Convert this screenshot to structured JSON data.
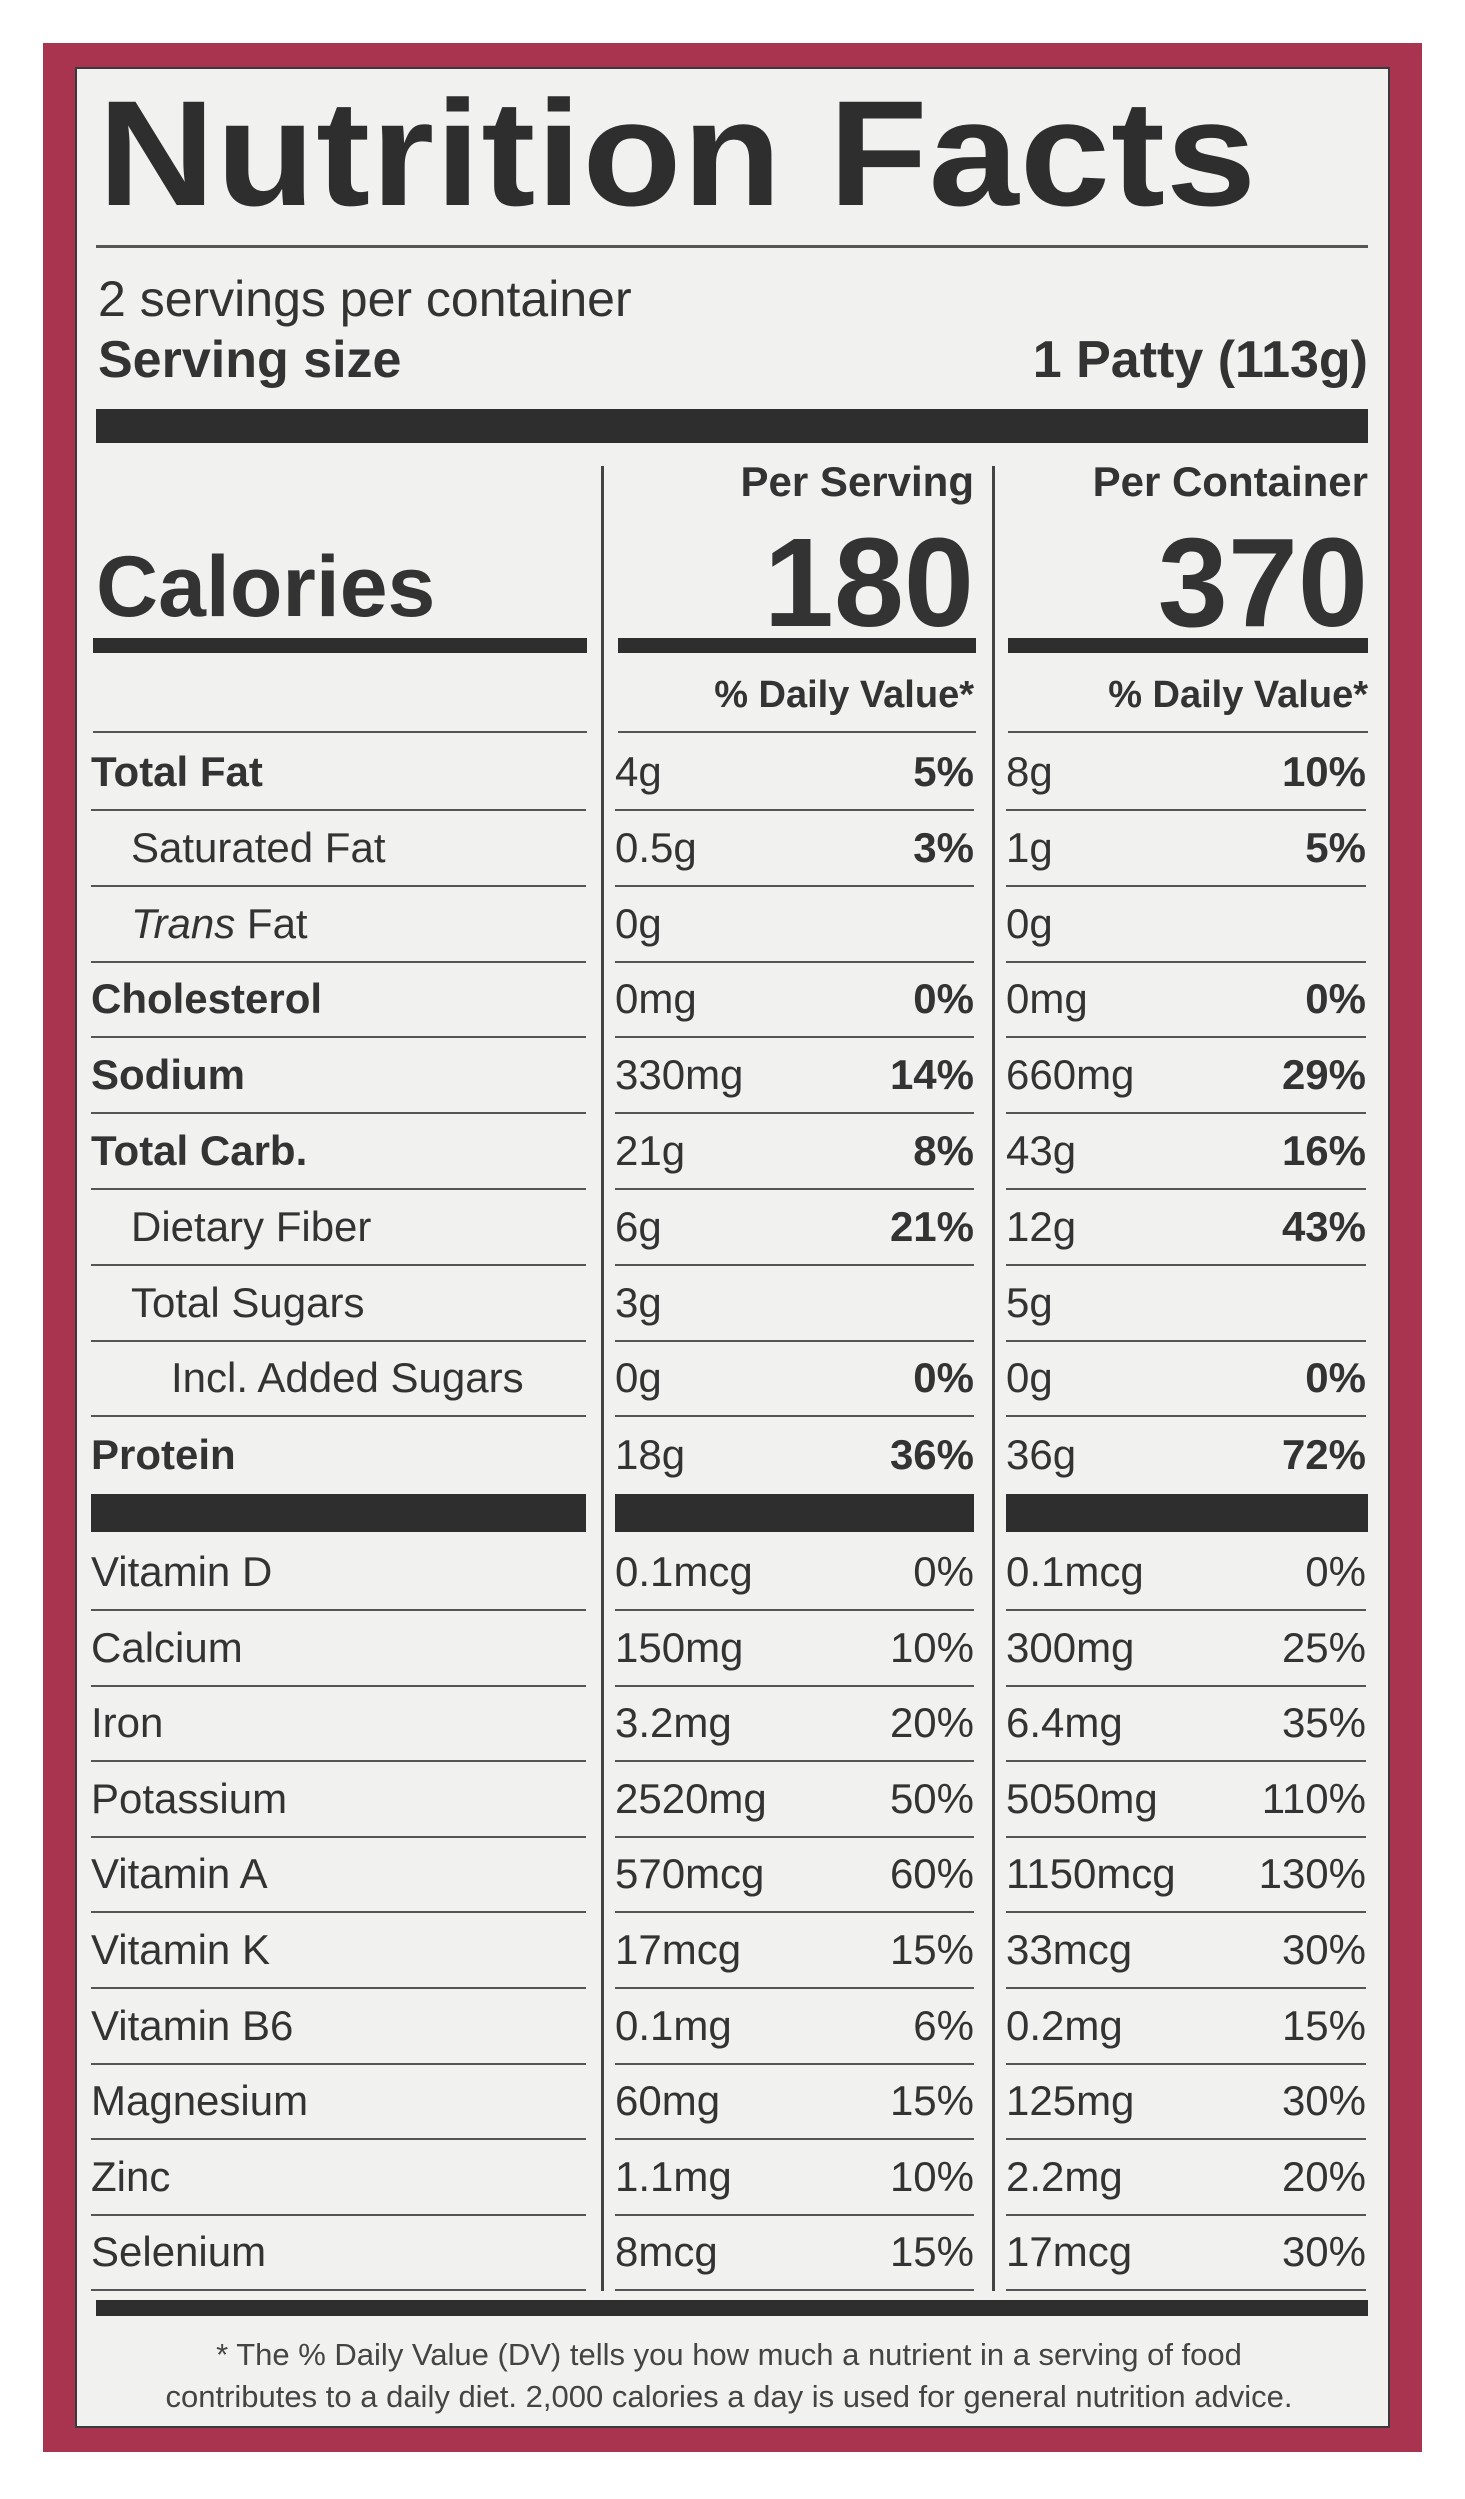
{
  "title": "Nutrition Facts",
  "servings_per_container": "2 servings per container",
  "serving_size_label": "Serving size",
  "serving_size_value": "1 Patty (113g)",
  "columns": {
    "per_serving": "Per Serving",
    "per_container": "Per Container"
  },
  "calories": {
    "label": "Calories",
    "per_serving": "180",
    "per_container": "370"
  },
  "dv_header": "% Daily Value*",
  "nutrients": [
    {
      "name": "Total Fat",
      "style": "bold",
      "indent": 0,
      "s_amt": "4g",
      "s_dv": "5%",
      "c_amt": "8g",
      "c_dv": "10%"
    },
    {
      "name": "Saturated Fat",
      "style": "normal",
      "indent": 1,
      "s_amt": "0.5g",
      "s_dv": "3%",
      "c_amt": "1g",
      "c_dv": "5%"
    },
    {
      "name_italic": "Trans",
      "name": " Fat",
      "style": "normal",
      "indent": 1,
      "s_amt": "0g",
      "s_dv": "",
      "c_amt": "0g",
      "c_dv": ""
    },
    {
      "name": "Cholesterol",
      "style": "bold",
      "indent": 0,
      "s_amt": "0mg",
      "s_dv": "0%",
      "c_amt": "0mg",
      "c_dv": "0%"
    },
    {
      "name": "Sodium",
      "style": "bold",
      "indent": 0,
      "s_amt": "330mg",
      "s_dv": "14%",
      "c_amt": "660mg",
      "c_dv": "29%"
    },
    {
      "name": "Total Carb.",
      "style": "bold",
      "indent": 0,
      "s_amt": "21g",
      "s_dv": "8%",
      "c_amt": "43g",
      "c_dv": "16%"
    },
    {
      "name": "Dietary Fiber",
      "style": "normal",
      "indent": 1,
      "s_amt": "6g",
      "s_dv": "21%",
      "c_amt": "12g",
      "c_dv": "43%"
    },
    {
      "name": "Total Sugars",
      "style": "normal",
      "indent": 1,
      "s_amt": "3g",
      "s_dv": "",
      "c_amt": "5g",
      "c_dv": ""
    },
    {
      "name": "Incl. Added Sugars",
      "style": "normal",
      "indent": 2,
      "s_amt": "0g",
      "s_dv": "0%",
      "c_amt": "0g",
      "c_dv": "0%"
    },
    {
      "name": "Protein",
      "style": "bold",
      "indent": 0,
      "s_amt": "18g",
      "s_dv": "36%",
      "c_amt": "36g",
      "c_dv": "72%"
    }
  ],
  "vitamins": [
    {
      "name": "Vitamin D",
      "s_amt": "0.1mcg",
      "s_dv": "0%",
      "c_amt": "0.1mcg",
      "c_dv": "0%"
    },
    {
      "name": "Calcium",
      "s_amt": "150mg",
      "s_dv": "10%",
      "c_amt": "300mg",
      "c_dv": "25%"
    },
    {
      "name": "Iron",
      "s_amt": "3.2mg",
      "s_dv": "20%",
      "c_amt": "6.4mg",
      "c_dv": "35%"
    },
    {
      "name": "Potassium",
      "s_amt": "2520mg",
      "s_dv": "50%",
      "c_amt": "5050mg",
      "c_dv": "110%"
    },
    {
      "name": "Vitamin A",
      "s_amt": "570mcg",
      "s_dv": "60%",
      "c_amt": "1150mcg",
      "c_dv": "130%"
    },
    {
      "name": "Vitamin K",
      "s_amt": "17mcg",
      "s_dv": "15%",
      "c_amt": "33mcg",
      "c_dv": "30%"
    },
    {
      "name": "Vitamin B6",
      "s_amt": "0.1mg",
      "s_dv": "6%",
      "c_amt": "0.2mg",
      "c_dv": "15%"
    },
    {
      "name": "Magnesium",
      "s_amt": "60mg",
      "s_dv": "15%",
      "c_amt": "125mg",
      "c_dv": "30%"
    },
    {
      "name": "Zinc",
      "s_amt": "1.1mg",
      "s_dv": "10%",
      "c_amt": "2.2mg",
      "c_dv": "20%"
    },
    {
      "name": "Selenium",
      "s_amt": "8mcg",
      "s_dv": "15%",
      "c_amt": "17mcg",
      "c_dv": "30%"
    }
  ],
  "footnote_line1": "* The % Daily Value (DV) tells you how much a nutrient in a serving of food",
  "footnote_line2": "contributes to a daily diet. 2,000 calories a day is used for general nutrition advice.",
  "colors": {
    "border": "#a8344f",
    "panel": "#f1f1f0",
    "ink": "#2e2e2e"
  }
}
